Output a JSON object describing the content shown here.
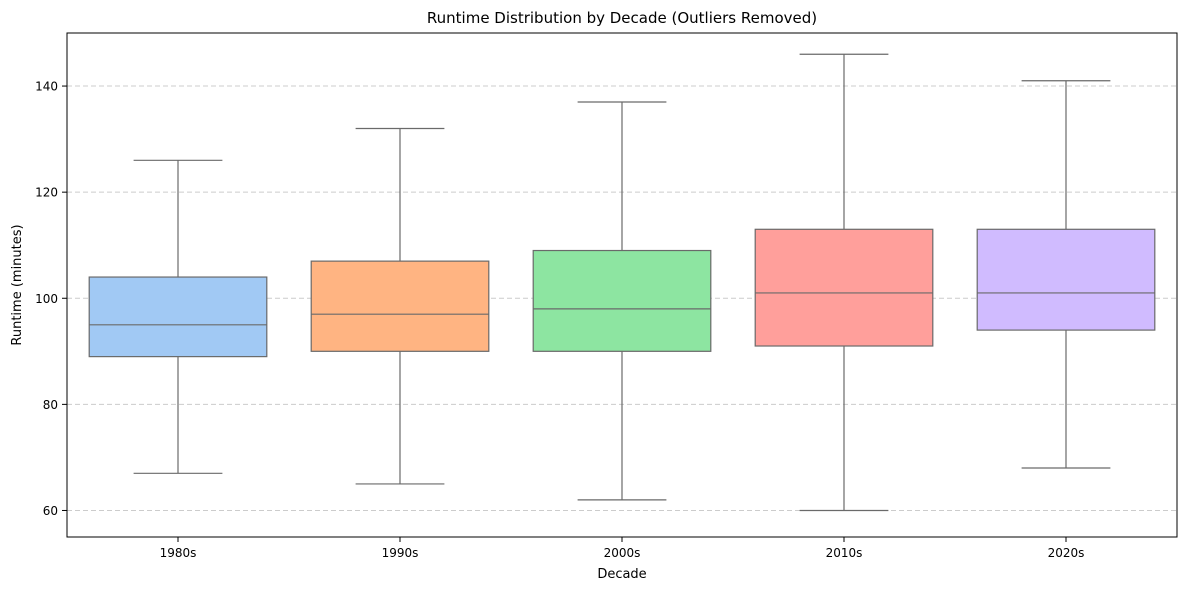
{
  "chart_data": {
    "type": "box",
    "title": "Runtime Distribution by Decade (Outliers Removed)",
    "xlabel": "Decade",
    "ylabel": "Runtime (minutes)",
    "ylim": [
      55,
      150
    ],
    "yticks": [
      60,
      80,
      100,
      120,
      140
    ],
    "grid": {
      "y": true,
      "style": "dashed"
    },
    "categories": [
      "1980s",
      "1990s",
      "2000s",
      "2010s",
      "2020s"
    ],
    "boxes": [
      {
        "category": "1980s",
        "min": 67,
        "q1": 89,
        "median": 95,
        "q3": 104,
        "max": 126,
        "color": "#a1c9f4"
      },
      {
        "category": "1990s",
        "min": 65,
        "q1": 90,
        "median": 97,
        "q3": 107,
        "max": 132,
        "color": "#ffb482"
      },
      {
        "category": "2000s",
        "min": 62,
        "q1": 90,
        "median": 98,
        "q3": 109,
        "max": 137,
        "color": "#8de5a1"
      },
      {
        "category": "2010s",
        "min": 60,
        "q1": 91,
        "median": 101,
        "q3": 113,
        "max": 146,
        "color": "#ff9f9b"
      },
      {
        "category": "2020s",
        "min": 68,
        "q1": 94,
        "median": 101,
        "q3": 113,
        "max": 141,
        "color": "#d0bbff"
      }
    ]
  }
}
